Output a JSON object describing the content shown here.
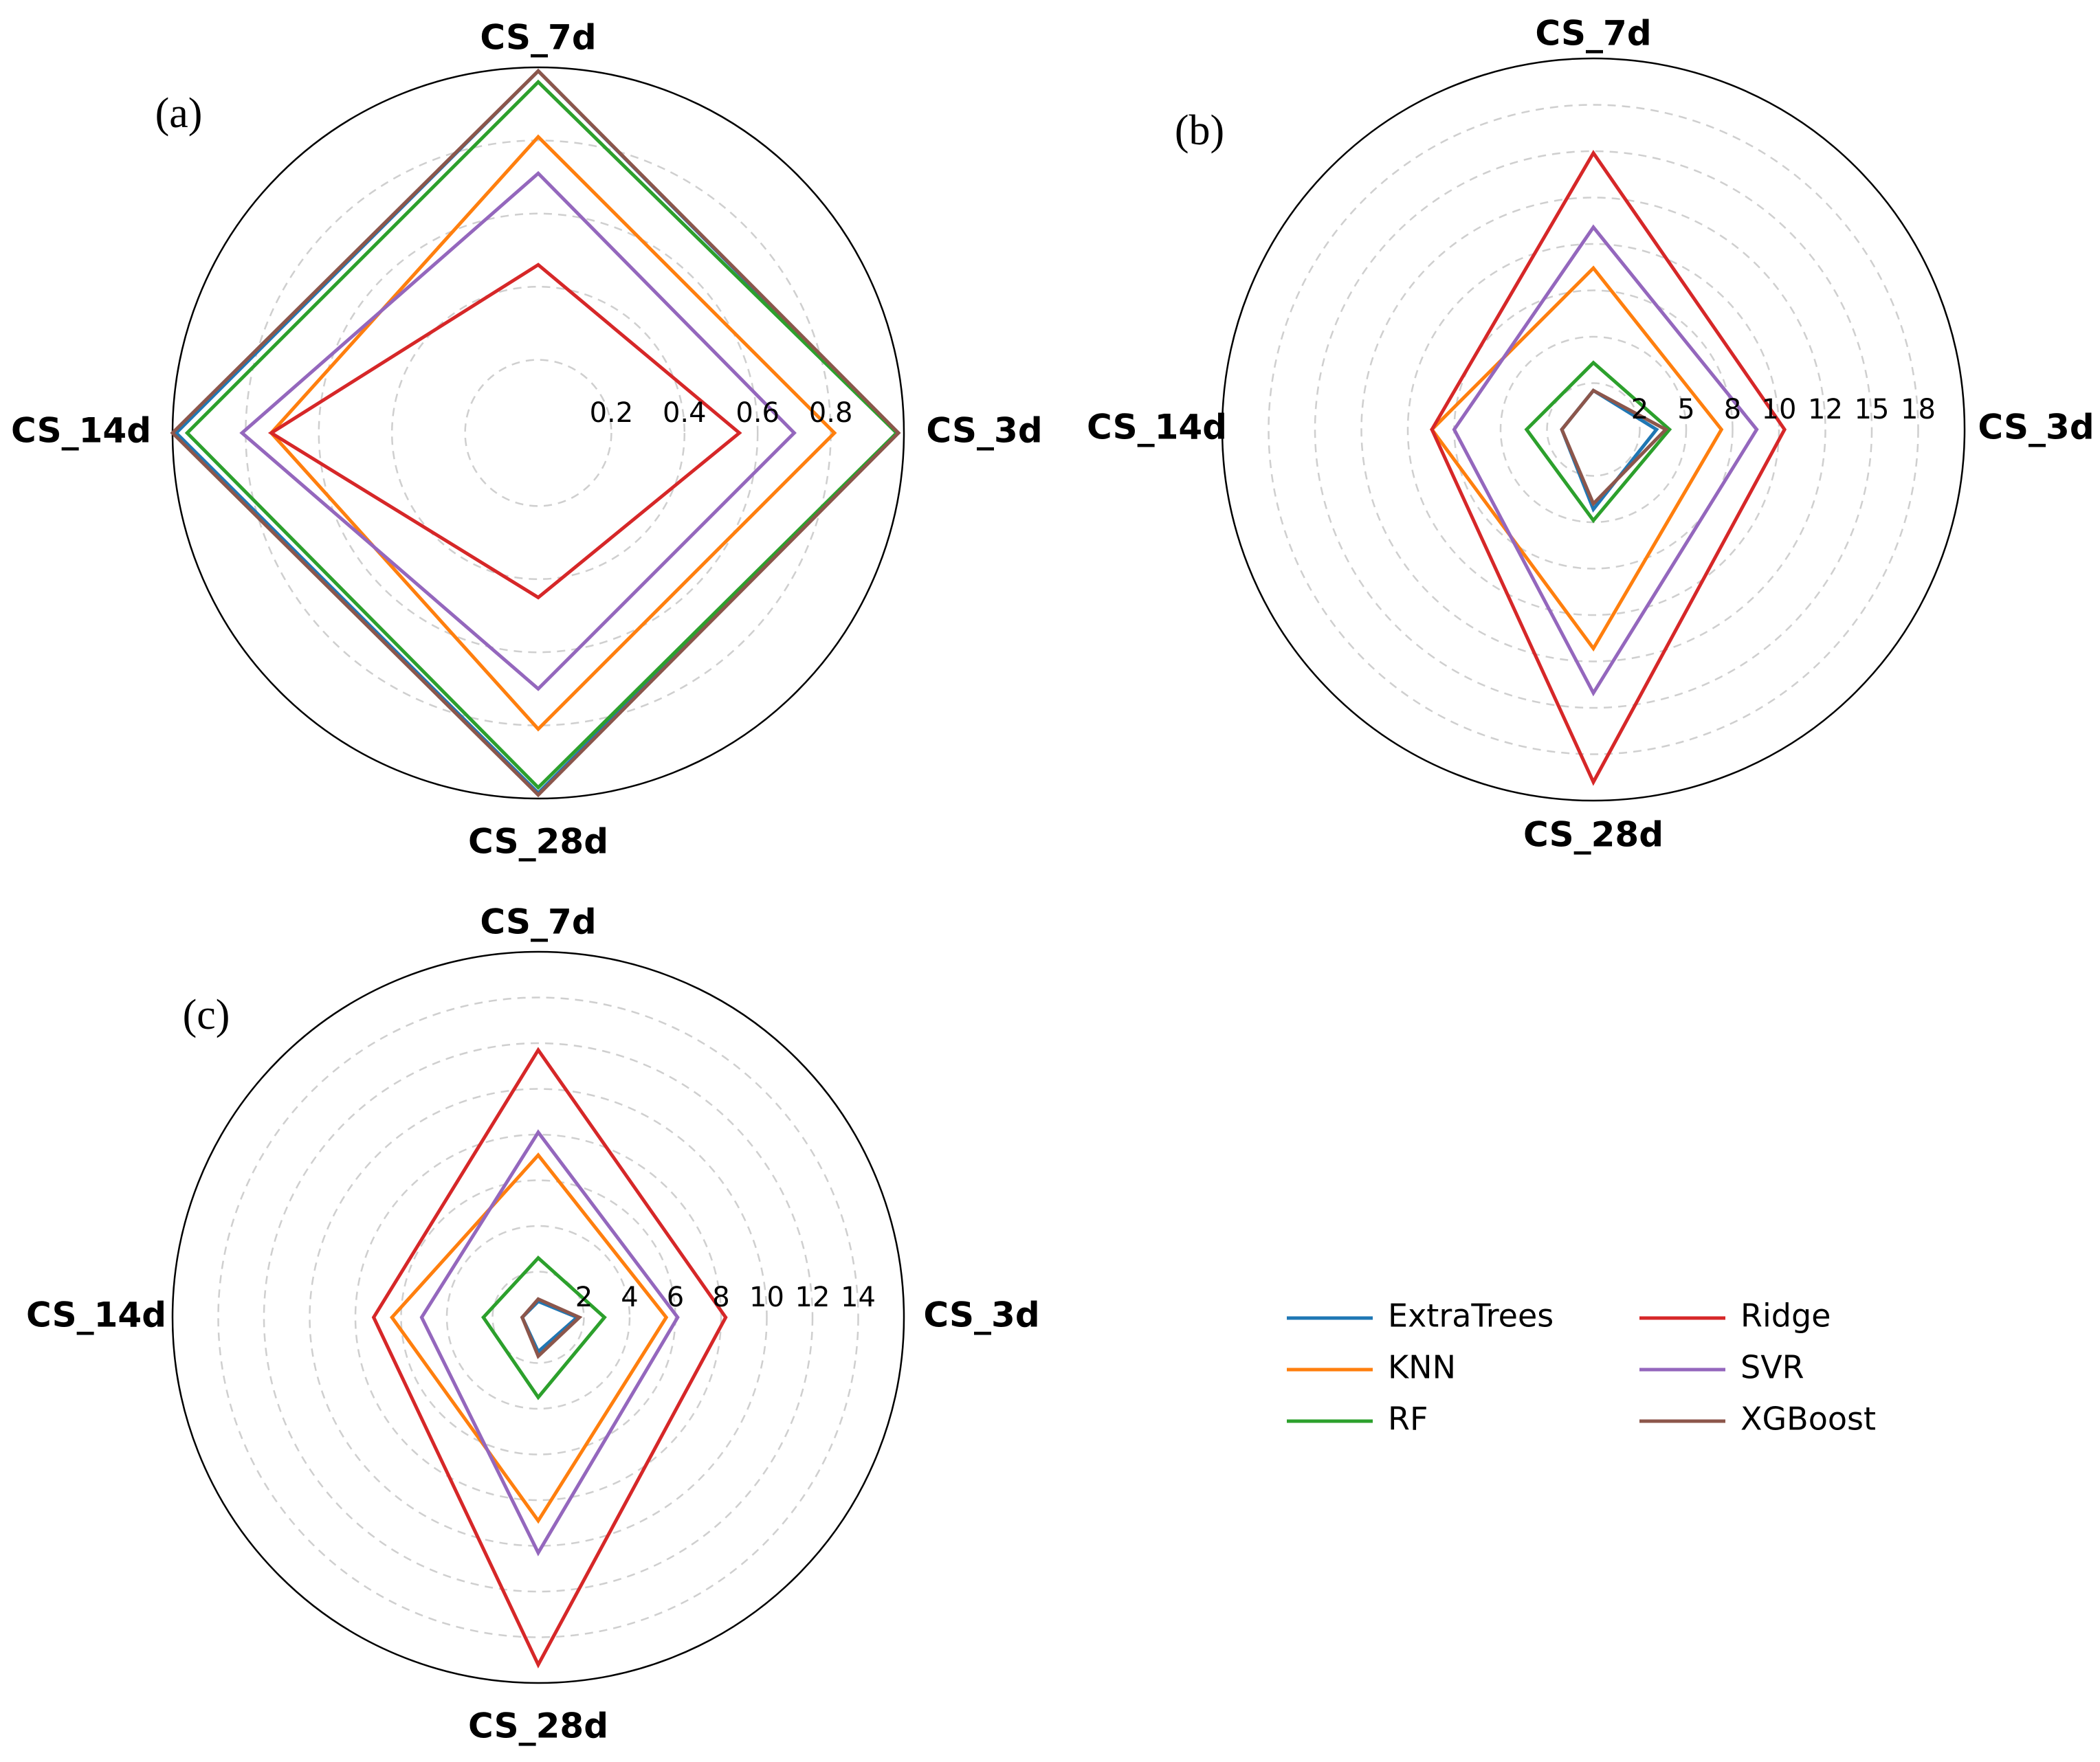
{
  "chart_data": [
    {
      "type": "radar",
      "panel_label": "(a)",
      "axes": [
        "CS_3d",
        "CS_7d",
        "CS_14d",
        "CS_28d"
      ],
      "r_ticks": [
        0.2,
        0.4,
        0.6,
        0.8
      ],
      "r_tick_labels": [
        "0.2",
        "0.4",
        "0.6",
        "0.8"
      ],
      "rlim": [
        0,
        1.0
      ],
      "series": [
        {
          "name": "ExtraTrees",
          "color": "#1f77b4",
          "values": [
            0.98,
            0.99,
            0.99,
            0.985
          ]
        },
        {
          "name": "KNN",
          "color": "#ff7f0e",
          "values": [
            0.81,
            0.81,
            0.73,
            0.81
          ]
        },
        {
          "name": "RF",
          "color": "#2ca02c",
          "values": [
            0.98,
            0.96,
            0.96,
            0.97
          ]
        },
        {
          "name": "Ridge",
          "color": "#d62728",
          "values": [
            0.55,
            0.46,
            0.73,
            0.45
          ]
        },
        {
          "name": "SVR",
          "color": "#9467bd",
          "values": [
            0.7,
            0.71,
            0.81,
            0.7
          ]
        },
        {
          "name": "XGBoost",
          "color": "#8c564b",
          "values": [
            0.985,
            0.99,
            1.0,
            0.99
          ]
        }
      ]
    },
    {
      "type": "radar",
      "panel_label": "(b)",
      "axes": [
        "CS_3d",
        "CS_7d",
        "CS_14d",
        "CS_28d"
      ],
      "r_ticks": [
        2.5,
        5.0,
        7.5,
        10.0,
        12.5,
        15.0,
        17.5
      ],
      "r_tick_labels": [
        "2",
        "5",
        "8",
        "10",
        "12",
        "15",
        "18"
      ],
      "rlim": [
        0,
        20.0
      ],
      "series": [
        {
          "name": "ExtraTrees",
          "color": "#1f77b4",
          "values": [
            3.4,
            2.1,
            1.7,
            4.3
          ]
        },
        {
          "name": "KNN",
          "color": "#ff7f0e",
          "values": [
            6.9,
            8.7,
            8.7,
            11.8
          ]
        },
        {
          "name": "RF",
          "color": "#2ca02c",
          "values": [
            4.1,
            3.6,
            3.6,
            4.9
          ]
        },
        {
          "name": "Ridge",
          "color": "#d62728",
          "values": [
            10.3,
            14.9,
            8.7,
            19.0
          ]
        },
        {
          "name": "SVR",
          "color": "#9467bd",
          "values": [
            8.8,
            10.9,
            7.5,
            14.2
          ]
        },
        {
          "name": "XGBoost",
          "color": "#8c564b",
          "values": [
            3.9,
            2.1,
            1.7,
            4.0
          ]
        }
      ]
    },
    {
      "type": "radar",
      "panel_label": "(c)",
      "axes": [
        "CS_3d",
        "CS_7d",
        "CS_14d",
        "CS_28d"
      ],
      "r_ticks": [
        2,
        4,
        6,
        8,
        10,
        12,
        14
      ],
      "r_tick_labels": [
        "2",
        "4",
        "6",
        "8",
        "10",
        "12",
        "14"
      ],
      "rlim": [
        0,
        16.0
      ],
      "series": [
        {
          "name": "ExtraTrees",
          "color": "#1f77b4",
          "values": [
            1.7,
            0.7,
            0.7,
            1.5
          ]
        },
        {
          "name": "KNN",
          "color": "#ff7f0e",
          "values": [
            5.6,
            7.1,
            6.4,
            8.9
          ]
        },
        {
          "name": "RF",
          "color": "#2ca02c",
          "values": [
            2.9,
            2.6,
            2.4,
            3.5
          ]
        },
        {
          "name": "Ridge",
          "color": "#d62728",
          "values": [
            8.2,
            11.7,
            7.2,
            15.2
          ]
        },
        {
          "name": "SVR",
          "color": "#9467bd",
          "values": [
            6.1,
            8.1,
            5.1,
            10.3
          ]
        },
        {
          "name": "XGBoost",
          "color": "#8c564b",
          "values": [
            1.8,
            0.8,
            0.7,
            1.7
          ]
        }
      ]
    }
  ],
  "legend": {
    "placement": "bottom-right",
    "entries": [
      {
        "label": "ExtraTrees",
        "color": "#1f77b4"
      },
      {
        "label": "KNN",
        "color": "#ff7f0e"
      },
      {
        "label": "RF",
        "color": "#2ca02c"
      },
      {
        "label": "Ridge",
        "color": "#d62728"
      },
      {
        "label": "SVR",
        "color": "#9467bd"
      },
      {
        "label": "XGBoost",
        "color": "#8c564b"
      }
    ]
  }
}
